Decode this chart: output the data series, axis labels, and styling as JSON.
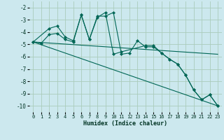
{
  "xlabel": "Humidex (Indice chaleur)",
  "bg_color": "#cce8ee",
  "grid_color": "#aaccbb",
  "line_color": "#006655",
  "marker_color": "#006655",
  "xlim": [
    -0.5,
    23.5
  ],
  "ylim": [
    -10.5,
    -1.5
  ],
  "yticks": [
    -10,
    -9,
    -8,
    -7,
    -6,
    -5,
    -4,
    -3,
    -2
  ],
  "xticks": [
    0,
    1,
    2,
    3,
    4,
    5,
    6,
    7,
    8,
    9,
    10,
    11,
    12,
    13,
    14,
    15,
    16,
    17,
    18,
    19,
    20,
    21,
    22,
    23
  ],
  "series": [
    {
      "x": [
        0,
        1,
        2,
        3,
        4,
        5,
        6,
        7,
        8,
        9,
        10,
        11,
        12,
        13,
        14,
        15,
        16,
        17,
        18,
        19,
        20,
        21,
        22,
        23
      ],
      "y": [
        -4.8,
        -4.9,
        -4.2,
        -4.1,
        -4.6,
        -4.8,
        -2.6,
        -4.6,
        -2.7,
        -2.7,
        -2.4,
        -5.8,
        -5.7,
        -4.7,
        -5.2,
        -5.2,
        -5.7,
        -6.2,
        -6.6,
        -7.5,
        -8.7,
        -9.5,
        -9.1,
        -10.0
      ],
      "markers": true
    },
    {
      "x": [
        0,
        2,
        3,
        4,
        5,
        6,
        7,
        8,
        9,
        10,
        11,
        14,
        15,
        16,
        17,
        18,
        19,
        20,
        21,
        22,
        23
      ],
      "y": [
        -4.8,
        -3.7,
        -3.5,
        -4.4,
        -4.7,
        -2.6,
        -4.6,
        -2.8,
        -2.4,
        -5.8,
        -5.6,
        -5.1,
        -5.1,
        -5.7,
        -6.2,
        -6.6,
        -7.5,
        -8.7,
        -9.5,
        -9.1,
        -10.0
      ],
      "markers": true
    },
    {
      "x": [
        0,
        23
      ],
      "y": [
        -4.8,
        -5.8
      ],
      "markers": false
    },
    {
      "x": [
        0,
        23
      ],
      "y": [
        -4.8,
        -10.0
      ],
      "markers": false
    }
  ]
}
